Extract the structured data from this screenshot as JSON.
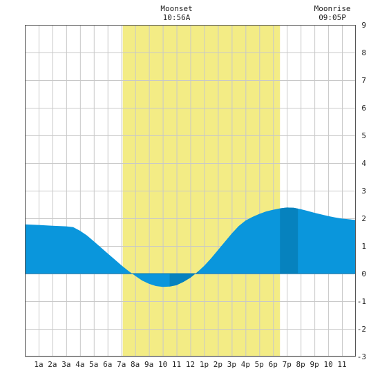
{
  "chart_data": {
    "type": "area",
    "x_unit": "hour of day",
    "xlim": [
      0,
      24
    ],
    "ylim": [
      -3,
      9
    ],
    "y_ticks": [
      -3,
      -2,
      -1,
      0,
      1,
      2,
      3,
      4,
      5,
      6,
      7,
      8,
      9
    ],
    "x_ticks": [
      {
        "hour": 1,
        "label": "1a"
      },
      {
        "hour": 2,
        "label": "2a"
      },
      {
        "hour": 3,
        "label": "3a"
      },
      {
        "hour": 4,
        "label": "4a"
      },
      {
        "hour": 5,
        "label": "5a"
      },
      {
        "hour": 6,
        "label": "6a"
      },
      {
        "hour": 7,
        "label": "7a"
      },
      {
        "hour": 8,
        "label": "8a"
      },
      {
        "hour": 9,
        "label": "9a"
      },
      {
        "hour": 10,
        "label": "10"
      },
      {
        "hour": 11,
        "label": "11"
      },
      {
        "hour": 12,
        "label": "12"
      },
      {
        "hour": 13,
        "label": "1p"
      },
      {
        "hour": 14,
        "label": "2p"
      },
      {
        "hour": 15,
        "label": "3p"
      },
      {
        "hour": 16,
        "label": "4p"
      },
      {
        "hour": 17,
        "label": "5p"
      },
      {
        "hour": 18,
        "label": "6p"
      },
      {
        "hour": 19,
        "label": "7p"
      },
      {
        "hour": 20,
        "label": "8p"
      },
      {
        "hour": 21,
        "label": "9p"
      },
      {
        "hour": 22,
        "label": "10"
      },
      {
        "hour": 23,
        "label": "11"
      }
    ],
    "grid": true,
    "daylight_hours": [
      7.1,
      18.5
    ],
    "tide": [
      [
        0,
        1.78
      ],
      [
        1,
        1.76
      ],
      [
        2,
        1.73
      ],
      [
        3,
        1.71
      ],
      [
        3.5,
        1.68
      ],
      [
        4,
        1.55
      ],
      [
        4.5,
        1.38
      ],
      [
        5,
        1.17
      ],
      [
        5.5,
        0.95
      ],
      [
        6,
        0.73
      ],
      [
        6.5,
        0.52
      ],
      [
        7,
        0.3
      ],
      [
        7.5,
        0.1
      ],
      [
        8,
        -0.08
      ],
      [
        8.5,
        -0.25
      ],
      [
        9,
        -0.37
      ],
      [
        9.5,
        -0.45
      ],
      [
        10,
        -0.48
      ],
      [
        10.5,
        -0.47
      ],
      [
        11,
        -0.42
      ],
      [
        11.5,
        -0.3
      ],
      [
        12,
        -0.15
      ],
      [
        12.5,
        0.05
      ],
      [
        13,
        0.28
      ],
      [
        13.5,
        0.55
      ],
      [
        14,
        0.85
      ],
      [
        14.5,
        1.15
      ],
      [
        15,
        1.45
      ],
      [
        15.5,
        1.72
      ],
      [
        16,
        1.92
      ],
      [
        16.5,
        2.05
      ],
      [
        17,
        2.16
      ],
      [
        17.5,
        2.25
      ],
      [
        18,
        2.31
      ],
      [
        18.5,
        2.36
      ],
      [
        19,
        2.39
      ],
      [
        19.5,
        2.38
      ],
      [
        20,
        2.33
      ],
      [
        20.5,
        2.27
      ],
      [
        21,
        2.2
      ],
      [
        21.5,
        2.14
      ],
      [
        22,
        2.08
      ],
      [
        22.5,
        2.03
      ],
      [
        23,
        1.99
      ],
      [
        24,
        1.94
      ]
    ],
    "highlight_bands": [
      {
        "from": 10.5,
        "to": 12.6,
        "where": "below zero"
      },
      {
        "from": 18.5,
        "to": 19.8,
        "where": "above zero"
      }
    ],
    "annotations": [
      {
        "hour": 11,
        "title": "Moonset",
        "time": "10:56A"
      },
      {
        "hour": 22.3,
        "title": "Moonrise",
        "time": "09:05P"
      }
    ],
    "colors": {
      "tide": "#0a96dc",
      "tide_dark": "#0682be",
      "daylight": "#f3ec85",
      "grid": "#c8c8c8",
      "border": "#555555"
    }
  }
}
